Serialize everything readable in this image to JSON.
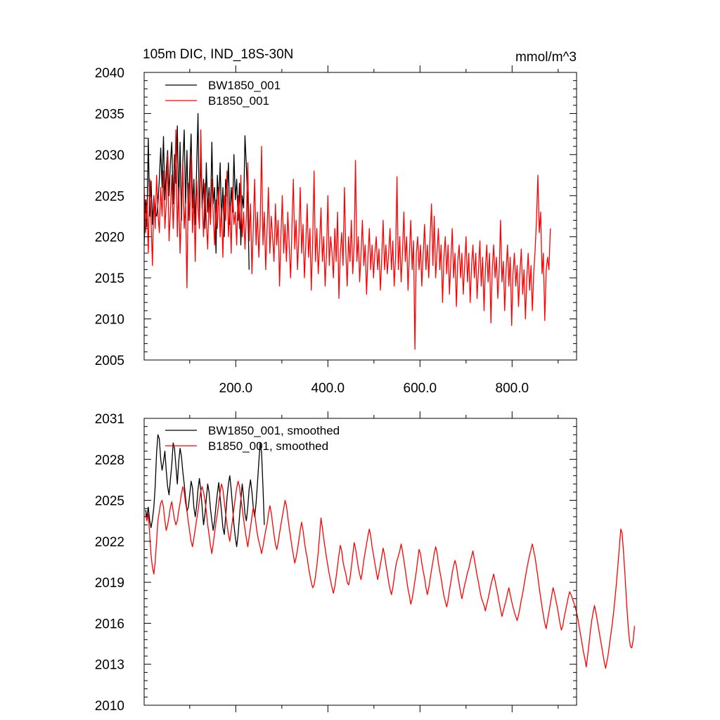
{
  "chart_data": [
    {
      "type": "line",
      "title_left": "105m DIC, IND_18S-30N",
      "title_right": "mmol/m^3",
      "xlim": [
        1,
        940
      ],
      "ylim": [
        2005,
        2040
      ],
      "yticks": [
        2005,
        2010,
        2015,
        2020,
        2025,
        2030,
        2035,
        2040
      ],
      "xticks": [
        200,
        400,
        600,
        800
      ],
      "xtick_labels": [
        "200.0",
        "400.0",
        "600.0",
        "800.0"
      ],
      "show_x_labels": true,
      "series": [
        {
          "name": "BW1850_001",
          "color": "#000000",
          "x_start": 1,
          "values": [
            2019.0,
            2024.5,
            2021.2,
            2032.0,
            2022.5,
            2026.8,
            2021.5,
            2025.0,
            2023.0,
            2022.5,
            2024.0,
            2027.0,
            2030.8,
            2026.0,
            2032.2,
            2024.5,
            2028.0,
            2030.5,
            2025.0,
            2029.0,
            2031.5,
            2024.0,
            2030.0,
            2026.5,
            2033.5,
            2023.5,
            2031.5,
            2022.0,
            2029.0,
            2033.0,
            2024.0,
            2030.5,
            2022.0,
            2028.0,
            2032.5,
            2023.5,
            2027.0,
            2021.5,
            2028.5,
            2035.0,
            2022.0,
            2030.0,
            2023.5,
            2027.0,
            2021.0,
            2029.0,
            2023.0,
            2026.0,
            2022.0,
            2031.5,
            2024.0,
            2026.0,
            2018.0,
            2027.5,
            2024.0,
            2029.0,
            2022.0,
            2026.0,
            2020.0,
            2027.0,
            2025.0,
            2029.0,
            2021.5,
            2026.0,
            2023.0,
            2030.0,
            2024.5,
            2027.0,
            2022.0,
            2026.5,
            2019.0,
            2025.0,
            2023.5,
            2032.3,
            2028.5,
            2024.0,
            2016.0
          ]
        },
        {
          "name": "B1850_001",
          "color": "#ff0000",
          "x_start": 1,
          "values": [
            2026.0,
            2020.5,
            2024.5,
            2018.0,
            2027.0,
            2022.0,
            2016.5,
            2025.0,
            2021.0,
            2027.5,
            2023.0,
            2020.5,
            2026.0,
            2022.5,
            2028.0,
            2021.0,
            2024.0,
            2030.0,
            2019.5,
            2023.0,
            2027.5,
            2021.0,
            2025.0,
            2033.0,
            2020.0,
            2026.0,
            2018.0,
            2023.5,
            2029.0,
            2021.0,
            2024.0,
            2013.8,
            2026.5,
            2022.0,
            2030.0,
            2020.5,
            2025.0,
            2017.0,
            2027.0,
            2023.5,
            2021.0,
            2033.0,
            2024.0,
            2020.0,
            2026.5,
            2022.0,
            2018.5,
            2025.0,
            2021.5,
            2027.0,
            2023.0,
            2019.0,
            2024.5,
            2021.0,
            2026.0,
            2020.0,
            2023.5,
            2017.5,
            2025.0,
            2022.0,
            2028.0,
            2020.0,
            2024.0,
            2018.0,
            2026.0,
            2021.5,
            2023.0,
            2019.0,
            2025.0,
            2021.0,
            2027.5,
            2020.0,
            2023.0,
            2018.5,
            2022.5,
            2029.0,
            2019.5,
            2024.0,
            2015.5,
            2021.0,
            2027.0,
            2019.0,
            2023.0,
            2017.5,
            2021.5,
            2031.0,
            2019.0,
            2023.0,
            2016.0,
            2021.0,
            2026.0,
            2018.0,
            2022.5,
            2020.0,
            2017.0,
            2024.0,
            2019.0,
            2022.0,
            2014.0,
            2020.0,
            2025.0,
            2018.0,
            2021.5,
            2017.0,
            2023.0,
            2019.0,
            2015.0,
            2021.0,
            2027.0,
            2018.5,
            2022.0,
            2016.0,
            2020.0,
            2026.0,
            2018.0,
            2021.5,
            2015.0,
            2019.0,
            2024.0,
            2017.5,
            2021.0,
            2013.5,
            2019.5,
            2028.0,
            2017.0,
            2021.0,
            2015.5,
            2019.0,
            2023.5,
            2017.0,
            2020.0,
            2014.0,
            2018.0,
            2025.0,
            2016.5,
            2020.0,
            2018.0,
            2015.0,
            2021.0,
            2017.0,
            2023.0,
            2012.5,
            2018.0,
            2020.5,
            2016.5,
            2026.0,
            2018.0,
            2014.0,
            2020.0,
            2017.0,
            2022.0,
            2015.5,
            2019.0,
            2029.3,
            2017.0,
            2020.0,
            2014.5,
            2018.0,
            2022.0,
            2016.5,
            2019.0,
            2013.0,
            2017.5,
            2021.0,
            2016.0,
            2019.0,
            2015.0,
            2018.0,
            2020.0,
            2016.0,
            2018.5,
            2013.5,
            2017.5,
            2022.0,
            2016.0,
            2019.0,
            2015.5,
            2018.0,
            2021.0,
            2016.0,
            2019.5,
            2014.0,
            2017.5,
            2027.3,
            2016.0,
            2020.0,
            2014.5,
            2018.0,
            2023.0,
            2017.0,
            2020.0,
            2013.5,
            2018.0,
            2022.0,
            2016.0,
            2019.5,
            2006.3,
            2018.0,
            2020.0,
            2016.0,
            2019.0,
            2014.0,
            2018.0,
            2021.5,
            2016.0,
            2019.0,
            2015.0,
            2020.0,
            2024.0,
            2016.5,
            2022.5,
            2015.0,
            2018.0,
            2021.0,
            2016.0,
            2019.0,
            2012.0,
            2017.5,
            2020.0,
            2015.5,
            2019.0,
            2013.0,
            2017.0,
            2021.0,
            2015.0,
            2018.0,
            2011.5,
            2017.0,
            2019.0,
            2015.0,
            2018.0,
            2013.0,
            2016.5,
            2020.0,
            2014.5,
            2018.0,
            2012.0,
            2016.5,
            2019.0,
            2015.0,
            2018.0,
            2012.5,
            2016.0,
            2019.5,
            2014.0,
            2017.5,
            2011.0,
            2016.0,
            2019.0,
            2014.5,
            2018.0,
            2009.5,
            2016.0,
            2019.0,
            2015.0,
            2017.5,
            2012.5,
            2016.0,
            2022.0,
            2014.5,
            2017.0,
            2011.0,
            2016.0,
            2019.0,
            2014.0,
            2017.5,
            2009.2,
            2015.5,
            2018.0,
            2014.0,
            2016.5,
            2011.5,
            2015.5,
            2018.5,
            2013.0,
            2016.0,
            2010.0,
            2015.0,
            2018.0,
            2013.5,
            2016.5,
            2011.0,
            2015.5,
            2018.5,
            2022.0,
            2027.5,
            2020.5,
            2023.0,
            2015.5,
            2018.0,
            2009.8,
            2016.0,
            2017.5,
            2016.0,
            2021.0
          ]
        }
      ]
    },
    {
      "type": "line",
      "xlim": [
        1,
        940
      ],
      "ylim": [
        2010,
        2031
      ],
      "yticks": [
        2010,
        2013,
        2016,
        2019,
        2022,
        2025,
        2028,
        2031
      ],
      "xticks": [
        200,
        400,
        600,
        800
      ],
      "show_x_labels": false,
      "series": [
        {
          "name": "BW1850_001, smoothed",
          "color": "#000000",
          "x_start": 4,
          "values": [
            2024.3,
            2023.8,
            2024.5,
            2023.5,
            2023.0,
            2023.6,
            2024.5,
            2026.0,
            2028.5,
            2029.8,
            2029.5,
            2028.0,
            2027.2,
            2027.8,
            2028.6,
            2027.2,
            2026.0,
            2025.4,
            2026.5,
            2027.6,
            2029.2,
            2028.8,
            2027.5,
            2026.2,
            2027.8,
            2028.8,
            2028.2,
            2027.1,
            2026.2,
            2025.2,
            2024.2,
            2024.5,
            2025.4,
            2026.4,
            2025.9,
            2024.5,
            2023.8,
            2024.6,
            2025.8,
            2026.6,
            2025.7,
            2024.5,
            2023.2,
            2024.0,
            2025.1,
            2026.2,
            2025.6,
            2024.4,
            2023.5,
            2022.8,
            2023.5,
            2024.6,
            2025.5,
            2026.3,
            2025.2,
            2024.2,
            2023.0,
            2022.5,
            2023.8,
            2025.2,
            2026.2,
            2026.8,
            2025.8,
            2024.5,
            2023.2,
            2022.3,
            2021.6,
            2022.5,
            2023.8,
            2025.0,
            2026.2,
            2025.2,
            2024.0,
            2023.5,
            2024.5,
            2025.8,
            2026.5,
            2025.6,
            2024.5,
            2023.8,
            2024.8,
            2026.2,
            2027.8,
            2029.2,
            2028.5,
            2026.0,
            2023.2
          ]
        },
        {
          "name": "B1850_001, smoothed",
          "color": "#ff0000",
          "x_start": 4,
          "values": [
            2024.0,
            2023.5,
            2024.0,
            2022.5,
            2021.0,
            2020.1,
            2019.6,
            2020.5,
            2022.0,
            2023.5,
            2024.2,
            2024.8,
            2025.0,
            2024.5,
            2023.5,
            2022.8,
            2023.2,
            2023.8,
            2024.5,
            2024.9,
            2024.2,
            2023.6,
            2023.2,
            2023.5,
            2024.2,
            2024.8,
            2025.5,
            2026.0,
            2025.6,
            2024.8,
            2024.2,
            2023.4,
            2022.7,
            2022.0,
            2021.6,
            2022.2,
            2022.9,
            2023.6,
            2024.2,
            2025.0,
            2025.7,
            2026.0,
            2025.6,
            2025.0,
            2024.2,
            2023.2,
            2022.5,
            2021.7,
            2021.1,
            2021.8,
            2022.6,
            2023.4,
            2024.0,
            2024.8,
            2025.6,
            2026.2,
            2025.8,
            2024.9,
            2024.0,
            2023.2,
            2022.5,
            2022.0,
            2022.8,
            2023.6,
            2024.4,
            2025.2,
            2025.9,
            2026.4,
            2026.0,
            2025.2,
            2024.4,
            2023.6,
            2022.9,
            2022.2,
            2021.6,
            2022.3,
            2023.0,
            2023.8,
            2024.5,
            2024.1,
            2023.2,
            2022.5,
            2022.0,
            2021.6,
            2021.1,
            2021.6,
            2022.2,
            2022.8,
            2023.3,
            2024.0,
            2024.6,
            2024.1,
            2023.3,
            2022.5,
            2021.8,
            2021.4,
            2021.9,
            2022.6,
            2023.2,
            2023.8,
            2024.4,
            2025.0,
            2024.6,
            2023.8,
            2023.0,
            2022.3,
            2021.6,
            2021.0,
            2020.4,
            2020.8,
            2021.4,
            2022.1,
            2022.8,
            2023.4,
            2022.8,
            2022.0,
            2021.3,
            2020.8,
            2020.1,
            2019.5,
            2019.0,
            2018.6,
            2018.8,
            2019.4,
            2020.2,
            2021.2,
            2022.4,
            2023.7,
            2023.0,
            2022.2,
            2021.5,
            2020.8,
            2020.2,
            2019.6,
            2019.1,
            2018.6,
            2018.2,
            2018.7,
            2019.4,
            2020.2,
            2021.0,
            2021.7,
            2021.3,
            2020.5,
            2020.0,
            2019.6,
            2019.0,
            2018.8,
            2019.3,
            2020.1,
            2021.0,
            2021.9,
            2021.5,
            2020.8,
            2020.1,
            2019.6,
            2019.2,
            2019.8,
            2020.6,
            2021.2,
            2021.8,
            2022.4,
            2022.9,
            2022.4,
            2021.6,
            2021.0,
            2020.4,
            2019.8,
            2019.2,
            2019.7,
            2020.3,
            2020.9,
            2021.5,
            2021.0,
            2020.3,
            2019.7,
            2019.0,
            2018.5,
            2018.1,
            2018.6,
            2019.3,
            2020.1,
            2020.6,
            2020.9,
            2021.3,
            2021.8,
            2021.3,
            2020.6,
            2019.9,
            2019.2,
            2018.5,
            2018.0,
            2017.4,
            2017.8,
            2018.4,
            2019.1,
            2019.8,
            2020.6,
            2021.4,
            2021.1,
            2020.4,
            2019.8,
            2019.3,
            2018.6,
            2018.1,
            2018.6,
            2019.2,
            2019.9,
            2020.5,
            2021.1,
            2021.6,
            2021.2,
            2020.4,
            2019.8,
            2019.3,
            2018.6,
            2018.0,
            2017.6,
            2017.2,
            2017.7,
            2018.4,
            2019.0,
            2019.7,
            2020.2,
            2020.6,
            2020.2,
            2019.5,
            2018.9,
            2018.3,
            2017.8,
            2018.3,
            2018.8,
            2019.2,
            2019.7,
            2020.0,
            2020.5,
            2020.9,
            2021.3,
            2020.7,
            2020.1,
            2019.5,
            2019.0,
            2018.4,
            2017.9,
            2017.6,
            2017.3,
            2016.9,
            2017.4,
            2017.8,
            2018.3,
            2018.8,
            2019.2,
            2019.6,
            2019.1,
            2018.6,
            2018.1,
            2017.5,
            2017.0,
            2016.5,
            2016.9,
            2017.3,
            2017.7,
            2018.2,
            2018.6,
            2018.1,
            2017.6,
            2017.2,
            2016.8,
            2016.5,
            2016.2,
            2016.6,
            2017.1,
            2017.7,
            2018.2,
            2018.8,
            2019.4,
            2020.0,
            2020.5,
            2021.0,
            2021.4,
            2021.8,
            2021.3,
            2020.8,
            2020.1,
            2019.4,
            2018.6,
            2017.9,
            2017.2,
            2016.6,
            2016.0,
            2015.6,
            2016.2,
            2016.8,
            2017.4,
            2018.0,
            2018.6,
            2018.2,
            2017.7,
            2017.2,
            2016.6,
            2016.0,
            2015.5,
            2015.8,
            2016.4,
            2016.9,
            2017.4,
            2017.9,
            2018.3,
            2018.1,
            2017.8,
            2017.5,
            2017.2,
            2016.8,
            2016.3,
            2015.7,
            2015.1,
            2014.5,
            2013.9,
            2013.4,
            2012.8,
            2013.6,
            2014.5,
            2015.4,
            2016.2,
            2016.8,
            2017.3,
            2016.8,
            2016.2,
            2015.6,
            2015.0,
            2014.4,
            2013.8,
            2013.2,
            2012.7,
            2013.2,
            2013.8,
            2014.6,
            2015.3,
            2016.1,
            2017.0,
            2018.0,
            2019.1,
            2020.3,
            2021.6,
            2022.9,
            2022.6,
            2021.2,
            2019.6,
            2017.9,
            2016.3,
            2015.0,
            2014.3,
            2014.2,
            2014.8,
            2015.8
          ]
        }
      ]
    }
  ]
}
